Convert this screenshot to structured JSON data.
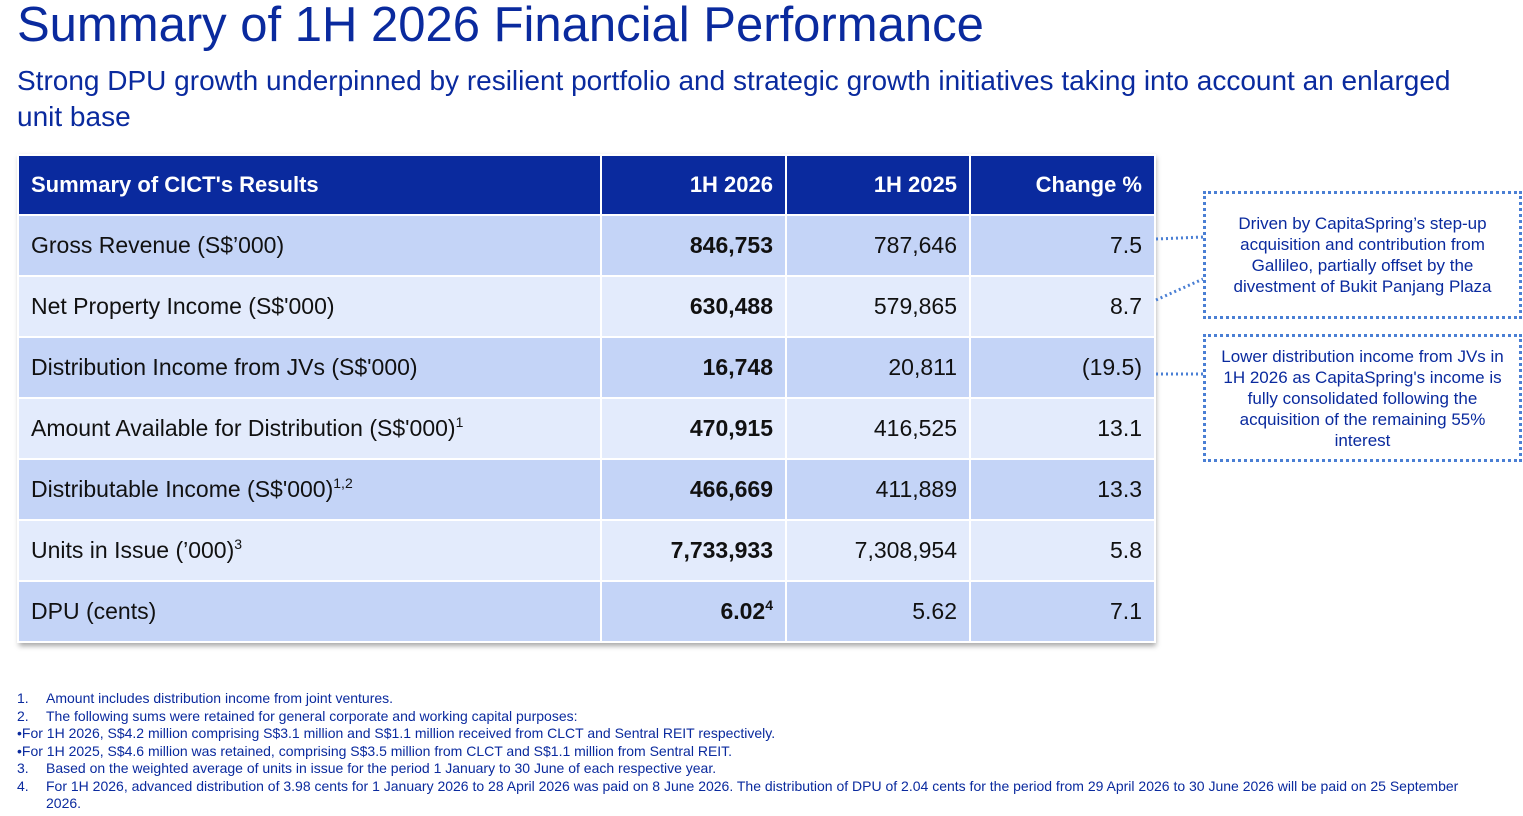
{
  "header": {
    "title": "Summary of 1H 2026 Financial Performance",
    "subtitle": "Strong DPU growth underpinned by resilient portfolio and strategic growth initiatives taking into account an enlarged unit base"
  },
  "table": {
    "columns": [
      "Summary of CICT's Results",
      "1H 2026",
      "1H 2025",
      "Change %"
    ],
    "rows": [
      {
        "label": "Gross Revenue (S$’000)",
        "sup": "",
        "h1_2026": "846,753",
        "h1_2026_sup": "",
        "h1_2025": "787,646",
        "change": "7.5"
      },
      {
        "label": "Net Property Income (S$'000)",
        "sup": "",
        "h1_2026": "630,488",
        "h1_2026_sup": "",
        "h1_2025": "579,865",
        "change": "8.7"
      },
      {
        "label": "Distribution Income from JVs (S$'000)",
        "sup": "",
        "h1_2026": "16,748",
        "h1_2026_sup": "",
        "h1_2025": "20,811",
        "change": "(19.5)"
      },
      {
        "label": "Amount Available for Distribution (S$'000)",
        "sup": "1",
        "h1_2026": "470,915",
        "h1_2026_sup": "",
        "h1_2025": "416,525",
        "change": "13.1"
      },
      {
        "label": "Distributable Income (S$'000)",
        "sup": "1,2",
        "h1_2026": "466,669",
        "h1_2026_sup": "",
        "h1_2025": "411,889",
        "change": "13.3"
      },
      {
        "label": "Units in Issue (’000)",
        "sup": "3",
        "h1_2026": "7,733,933",
        "h1_2026_sup": "",
        "h1_2025": "7,308,954",
        "change": "5.8"
      },
      {
        "label": "DPU (cents)",
        "sup": "",
        "h1_2026": "6.02",
        "h1_2026_sup": "4",
        "h1_2025": "5.62",
        "change": "7.1"
      }
    ]
  },
  "callouts": {
    "revenue_npi": "Driven by CapitaSpring’s step-up acquisition and contribution from Gallileo, partially offset by the divestment of Bukit Panjang Plaza",
    "jv_income": "Lower distribution income from JVs in 1H 2026 as CapitaSpring's income is fully consolidated following the acquisition of the remaining 55% interest"
  },
  "footnotes": {
    "n1": {
      "num": "1.",
      "text": "Amount includes distribution income from joint ventures."
    },
    "n2": {
      "num": "2.",
      "text": "The following sums were retained for general corporate and working capital purposes:",
      "bullets": [
        {
          "mark": "•",
          "text": "For 1H 2026, S$4.2 million comprising S$3.1 million and S$1.1 million received from CLCT and Sentral REIT respectively."
        },
        {
          "mark": "•",
          "text": "For 1H 2025, S$4.6 million was retained, comprising S$3.5 million from CLCT and S$1.1 million from Sentral REIT."
        }
      ]
    },
    "n3": {
      "num": "3.",
      "text": "Based on the weighted average of units in issue for the period 1 January to 30 June of each respective year."
    },
    "n4": {
      "num": "4.",
      "text": "For 1H 2026, advanced distribution of 3.98 cents for 1 January 2026 to 28 April 2026 was paid on 8 June 2026. The distribution of DPU of 2.04 cents for the period from 29 April 2026 to 30 June 2026 will be paid on 25 September 2026."
    }
  },
  "colors": {
    "brand_blue": "#0a2a9e",
    "row_dark": "#c4d4f7",
    "row_light": "#e3ebfc",
    "callout_border": "#4a7fd4"
  }
}
